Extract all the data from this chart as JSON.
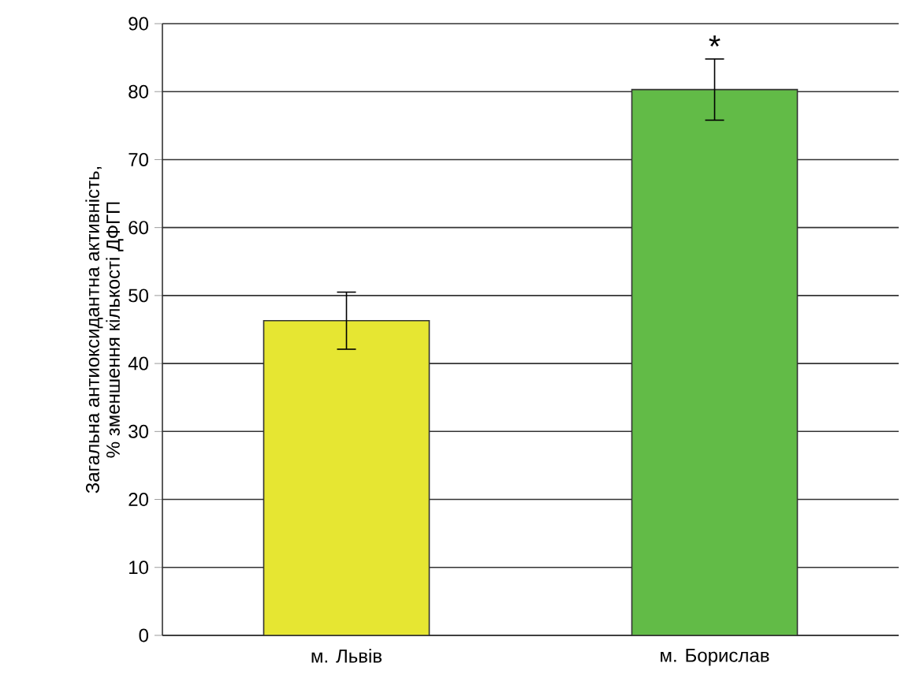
{
  "chart_data": {
    "type": "bar",
    "ylabel": "Загальна антиоксидантна активність,\n% зменшення кількості ДФГП",
    "categories": [
      "м. Львів",
      "м. Борислав"
    ],
    "values": [
      46.3,
      80.3
    ],
    "errors": [
      4.2,
      4.5
    ],
    "colors": [
      "#e6e632",
      "#62bb47"
    ],
    "ylim": [
      0,
      90
    ],
    "yticks": [
      0,
      10,
      20,
      30,
      40,
      50,
      60,
      70,
      80,
      90
    ],
    "grid": "y",
    "annotations": [
      {
        "text": "*",
        "x": "м. Борислав",
        "y": 84.8
      }
    ]
  }
}
